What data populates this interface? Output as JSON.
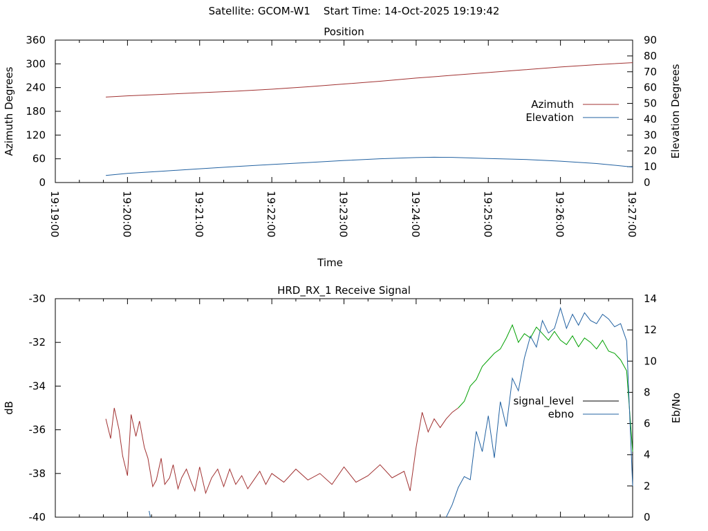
{
  "title": "Satellite: GCOM-W1    Start Time: 14-Oct-2025 19:19:42",
  "chart_data": [
    {
      "type": "line",
      "title": "Position",
      "xlabel": "Time",
      "ylabel": "Azimuth Degrees",
      "y2label": "Elevation Degrees",
      "xlim": [
        "19:19:00",
        "19:27:00"
      ],
      "xticks": [
        "19:19:00",
        "19:20:00",
        "19:21:00",
        "19:22:00",
        "19:23:00",
        "19:24:00",
        "19:25:00",
        "19:26:00",
        "19:27:00"
      ],
      "ylim": [
        0,
        360
      ],
      "yticks": [
        "0",
        "60",
        "120",
        "180",
        "240",
        "300",
        "360"
      ],
      "y2lim": [
        0,
        90
      ],
      "y2ticks": [
        "0",
        "10",
        "20",
        "30",
        "40",
        "50",
        "60",
        "70",
        "80",
        "90"
      ],
      "legend_position": "right",
      "grid": false,
      "series": [
        {
          "name": "Azimuth",
          "axis": "left",
          "color": "#a03030",
          "x": [
            "19:19:42",
            "19:20:00",
            "19:20:30",
            "19:21:00",
            "19:21:30",
            "19:22:00",
            "19:22:30",
            "19:23:00",
            "19:23:30",
            "19:24:00",
            "19:24:30",
            "19:25:00",
            "19:25:30",
            "19:26:00",
            "19:26:30",
            "19:27:00"
          ],
          "y": [
            216,
            219,
            223,
            227,
            231,
            236,
            242,
            249,
            256,
            264,
            271,
            278,
            285,
            292,
            298,
            303
          ]
        },
        {
          "name": "Elevation",
          "axis": "right",
          "color": "#2060a0",
          "x": [
            "19:19:42",
            "19:20:00",
            "19:20:30",
            "19:21:00",
            "19:21:30",
            "19:22:00",
            "19:22:30",
            "19:23:00",
            "19:23:30",
            "19:24:00",
            "19:24:15",
            "19:24:30",
            "19:25:00",
            "19:25:30",
            "19:26:00",
            "19:26:30",
            "19:27:00"
          ],
          "y": [
            4.5,
            5.8,
            7.2,
            8.7,
            10.1,
            11.4,
            12.6,
            13.9,
            15.0,
            15.8,
            16.0,
            15.9,
            15.2,
            14.6,
            13.5,
            12.0,
            9.8
          ]
        }
      ]
    },
    {
      "type": "line",
      "title": "HRD_RX_1 Receive Signal",
      "xlabel": "",
      "ylabel": "dB",
      "y2label": "Eb/No",
      "xlim": [
        "19:19:00",
        "19:27:00"
      ],
      "ylim": [
        -40,
        -30
      ],
      "yticks": [
        "-30",
        "-32",
        "-34",
        "-36",
        "-38",
        "-40"
      ],
      "y2lim": [
        0,
        14
      ],
      "y2ticks": [
        "0",
        "2",
        "4",
        "6",
        "8",
        "10",
        "12",
        "14"
      ],
      "legend_position": "right",
      "grid": false,
      "legend": [
        {
          "name": "signal_level",
          "color": "#000000"
        },
        {
          "name": "ebno",
          "color": "#2060a0"
        }
      ],
      "series": [
        {
          "name": "signal_level",
          "axis": "left",
          "color": "#a03030",
          "note_color_change": "#00a000",
          "x": [
            "19:19:42",
            "19:19:46",
            "19:19:49",
            "19:19:53",
            "19:19:56",
            "19:20:00",
            "19:20:03",
            "19:20:07",
            "19:20:10",
            "19:20:14",
            "19:20:17",
            "19:20:21",
            "19:20:24",
            "19:20:28",
            "19:20:31",
            "19:20:35",
            "19:20:38",
            "19:20:42",
            "19:20:45",
            "19:20:49",
            "19:20:53",
            "19:20:56",
            "19:21:00",
            "19:21:05",
            "19:21:10",
            "19:21:15",
            "19:21:20",
            "19:21:25",
            "19:21:30",
            "19:21:35",
            "19:21:40",
            "19:21:45",
            "19:21:50",
            "19:21:55",
            "19:22:00",
            "19:22:10",
            "19:22:20",
            "19:22:30",
            "19:22:40",
            "19:22:50",
            "19:23:00",
            "19:23:10",
            "19:23:20",
            "19:23:30",
            "19:23:40",
            "19:23:50",
            "19:23:55",
            "19:24:00",
            "19:24:05",
            "19:24:10",
            "19:24:15",
            "19:24:20",
            "19:24:25",
            "19:24:30",
            "19:24:35",
            "19:24:40",
            "19:24:45",
            "19:24:50",
            "19:24:55",
            "19:25:00",
            "19:25:05",
            "19:25:10",
            "19:25:15",
            "19:25:20",
            "19:25:25",
            "19:25:30",
            "19:25:35",
            "19:25:40",
            "19:25:45",
            "19:25:50",
            "19:25:55",
            "19:26:00",
            "19:26:05",
            "19:26:10",
            "19:26:15",
            "19:26:20",
            "19:26:25",
            "19:26:30",
            "19:26:35",
            "19:26:40",
            "19:26:45",
            "19:26:50",
            "19:26:55",
            "19:27:00"
          ],
          "y": [
            -35.5,
            -36.4,
            -35.0,
            -36.0,
            -37.2,
            -38.1,
            -35.3,
            -36.3,
            -35.6,
            -36.8,
            -37.3,
            -38.6,
            -38.3,
            -37.3,
            -38.5,
            -38.2,
            -37.6,
            -38.7,
            -38.2,
            -37.8,
            -38.4,
            -38.8,
            -37.7,
            -38.9,
            -38.2,
            -37.8,
            -38.6,
            -37.8,
            -38.5,
            -38.1,
            -38.7,
            -38.3,
            -37.9,
            -38.5,
            -38.0,
            -38.4,
            -37.8,
            -38.3,
            -38.0,
            -38.5,
            -37.7,
            -38.4,
            -38.1,
            -37.6,
            -38.2,
            -37.9,
            -38.8,
            -36.8,
            -35.2,
            -36.1,
            -35.5,
            -35.9,
            -35.5,
            -35.2,
            -35.0,
            -34.7,
            -34.0,
            -33.7,
            -33.1,
            -32.8,
            -32.5,
            -32.3,
            -31.8,
            -31.2,
            -32.0,
            -31.6,
            -31.8,
            -31.3,
            -31.6,
            -31.9,
            -31.5,
            -31.9,
            -32.1,
            -31.7,
            -32.2,
            -31.8,
            -32.0,
            -32.3,
            -31.9,
            -32.4,
            -32.5,
            -32.8,
            -33.3,
            -37.0
          ]
        },
        {
          "name": "ebno",
          "axis": "right",
          "color": "#2060a0",
          "x": [
            "19:20:18",
            "19:20:19",
            "19:24:25",
            "19:24:30",
            "19:24:35",
            "19:24:40",
            "19:24:45",
            "19:24:50",
            "19:24:55",
            "19:25:00",
            "19:25:05",
            "19:25:10",
            "19:25:15",
            "19:25:20",
            "19:25:25",
            "19:25:30",
            "19:25:35",
            "19:25:40",
            "19:25:45",
            "19:25:50",
            "19:25:55",
            "19:26:00",
            "19:26:05",
            "19:26:10",
            "19:26:15",
            "19:26:20",
            "19:26:25",
            "19:26:30",
            "19:26:35",
            "19:26:40",
            "19:26:45",
            "19:26:50",
            "19:26:55",
            "19:27:00"
          ],
          "y": [
            0.4,
            0.0,
            0.0,
            0.8,
            1.9,
            2.6,
            2.4,
            5.5,
            4.2,
            6.5,
            3.8,
            7.4,
            5.8,
            8.9,
            8.1,
            10.2,
            11.6,
            10.9,
            12.6,
            11.8,
            12.1,
            13.4,
            12.1,
            13.0,
            12.3,
            13.1,
            12.6,
            12.4,
            13.0,
            12.7,
            12.2,
            12.4,
            11.3,
            2.0
          ]
        }
      ]
    }
  ]
}
